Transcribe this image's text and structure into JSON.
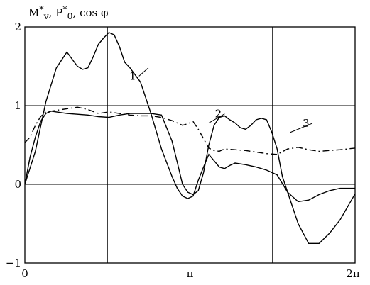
{
  "chart_data": {
    "type": "line",
    "title": "M*v, P*0, cos φ",
    "title_parts": {
      "m": "M",
      "m_sup": "*",
      "m_sub": "v",
      "sep1": ", ",
      "p": "P",
      "p_sup": "*",
      "p_sub": "0",
      "sep2": ", ",
      "cos": "cos φ"
    },
    "xlim": [
      0,
      6.2832
    ],
    "ylim": [
      -1,
      2
    ],
    "x_ticks": [
      {
        "value": 0,
        "label": "0"
      },
      {
        "value": 3.1416,
        "label": "π"
      },
      {
        "value": 6.2832,
        "label": "2π"
      }
    ],
    "y_ticks": [
      {
        "value": -1,
        "label": "−1"
      },
      {
        "value": 0,
        "label": "0"
      },
      {
        "value": 1,
        "label": "1"
      },
      {
        "value": 2,
        "label": "2"
      }
    ],
    "x_grid": [
      0,
      1.5708,
      3.1416,
      4.7124,
      6.2832
    ],
    "y_grid": [
      -1,
      0,
      1,
      2
    ],
    "grid": true,
    "series": [
      {
        "name": "1",
        "dash": "solid",
        "x": [
          0,
          0.2,
          0.4,
          0.6,
          0.8,
          1.0,
          1.1,
          1.2,
          1.3,
          1.4,
          1.5,
          1.6,
          1.7,
          1.8,
          1.9,
          2.0,
          2.2,
          2.4,
          2.6,
          2.8,
          2.9,
          3.0,
          3.1,
          3.2,
          3.3,
          3.4,
          3.5,
          3.6,
          3.7,
          3.8,
          3.9,
          4.0,
          4.2,
          4.4,
          4.6,
          4.8,
          5.0,
          5.2,
          5.4,
          5.6,
          5.8,
          6.0,
          6.2832
        ],
        "values": [
          0,
          0.42,
          1.05,
          1.48,
          1.68,
          1.5,
          1.46,
          1.48,
          1.62,
          1.78,
          1.86,
          1.93,
          1.9,
          1.75,
          1.55,
          1.48,
          1.3,
          0.9,
          0.45,
          0.1,
          -0.05,
          -0.15,
          -0.18,
          -0.15,
          0.05,
          0.22,
          0.38,
          0.3,
          0.22,
          0.2,
          0.24,
          0.27,
          0.25,
          0.22,
          0.18,
          0.12,
          -0.1,
          -0.5,
          -0.75,
          -0.75,
          -0.62,
          -0.45,
          -0.12
        ]
      },
      {
        "name": "2",
        "dash": "dash-dot",
        "x": [
          0,
          0.1,
          0.2,
          0.3,
          0.4,
          0.6,
          0.8,
          1.0,
          1.2,
          1.4,
          1.6,
          1.8,
          2.0,
          2.2,
          2.4,
          2.6,
          2.8,
          3.0,
          3.1,
          3.2,
          3.3,
          3.4,
          3.5,
          3.6,
          3.7,
          3.8,
          4.0,
          4.2,
          4.4,
          4.6,
          4.8,
          5.0,
          5.2,
          5.4,
          5.6,
          5.8,
          6.0,
          6.2832
        ],
        "values": [
          0.53,
          0.6,
          0.75,
          0.86,
          0.92,
          0.94,
          0.96,
          0.98,
          0.95,
          0.9,
          0.92,
          0.9,
          0.88,
          0.87,
          0.87,
          0.85,
          0.81,
          0.75,
          0.77,
          0.8,
          0.7,
          0.58,
          0.46,
          0.43,
          0.42,
          0.45,
          0.44,
          0.43,
          0.41,
          0.39,
          0.38,
          0.45,
          0.47,
          0.44,
          0.42,
          0.43,
          0.44,
          0.46
        ]
      },
      {
        "name": "3",
        "dash": "solid",
        "x": [
          0,
          0.1,
          0.2,
          0.3,
          0.4,
          0.5,
          0.6,
          0.8,
          1.0,
          1.2,
          1.4,
          1.6,
          1.8,
          2.0,
          2.2,
          2.4,
          2.6,
          2.8,
          2.9,
          3.0,
          3.1,
          3.2,
          3.3,
          3.4,
          3.5,
          3.6,
          3.7,
          3.8,
          3.9,
          4.0,
          4.1,
          4.2,
          4.3,
          4.4,
          4.5,
          4.6,
          4.7,
          4.8,
          4.9,
          5.0,
          5.2,
          5.4,
          5.6,
          5.8,
          6.0,
          6.2832
        ],
        "values": [
          0,
          0.35,
          0.6,
          0.8,
          0.9,
          0.93,
          0.92,
          0.9,
          0.89,
          0.88,
          0.86,
          0.85,
          0.88,
          0.9,
          0.9,
          0.9,
          0.88,
          0.55,
          0.28,
          0.0,
          -0.1,
          -0.13,
          -0.08,
          0.15,
          0.5,
          0.75,
          0.85,
          0.87,
          0.82,
          0.78,
          0.72,
          0.7,
          0.75,
          0.82,
          0.84,
          0.82,
          0.66,
          0.45,
          0.1,
          -0.1,
          -0.22,
          -0.2,
          -0.13,
          -0.08,
          -0.05,
          -0.05
        ]
      }
    ],
    "annotations": [
      {
        "text": "1",
        "x": 2.05,
        "y": 1.33,
        "series": "1",
        "leader_x": 2.35,
        "leader_y": 1.48
      },
      {
        "text": "2",
        "x": 3.68,
        "y": 0.85,
        "series": "2",
        "leader_x": 3.5,
        "leader_y": 0.78
      },
      {
        "text": "3",
        "x": 5.35,
        "y": 0.73,
        "series": "3",
        "leader_x": 5.05,
        "leader_y": 0.66
      }
    ]
  }
}
